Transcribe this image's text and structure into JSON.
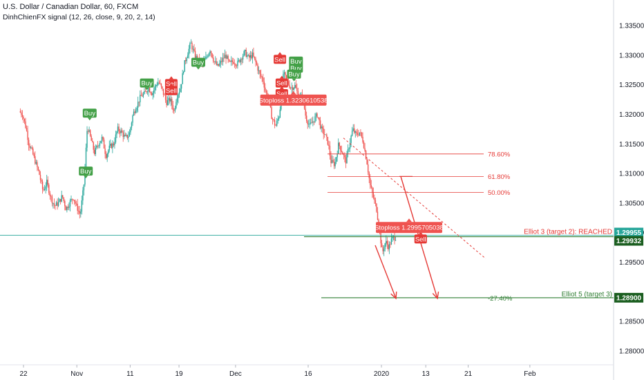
{
  "header": {
    "title": "U.S. Dollar / Canadian Dollar, 60, FXCM",
    "indicator": "DinhChienFX signal (12, 26, close, 9, 20, 2, 14)"
  },
  "chart_data": {
    "type": "candlestick",
    "symbol": "USDCAD",
    "timeframe": "60",
    "ylim": [
      1.2765,
      1.3395
    ],
    "price_ticks": [
      "1.33500",
      "1.33000",
      "1.32500",
      "1.32000",
      "1.31500",
      "1.31000",
      "1.30500",
      "1.30000",
      "1.29500",
      "1.28500",
      "1.28000"
    ],
    "date_ticks": [
      {
        "label": "22",
        "x": 0.0
      },
      {
        "label": "Nov",
        "x": 8.3
      },
      {
        "label": "11",
        "x": 16.6
      },
      {
        "label": "19",
        "x": 24.2
      },
      {
        "label": "Dec",
        "x": 33.0
      },
      {
        "label": "16",
        "x": 44.3
      },
      {
        "label": "2020",
        "x": 55.7
      },
      {
        "label": "13",
        "x": 62.6
      },
      {
        "label": "21",
        "x": 69.2
      },
      {
        "label": "Feb",
        "x": 78.8
      }
    ],
    "price_path": [
      [
        -0.5,
        1.3205
      ],
      [
        0,
        1.32
      ],
      [
        0.6,
        1.3175
      ],
      [
        1.0,
        1.315
      ],
      [
        1.4,
        1.314
      ],
      [
        2.0,
        1.312
      ],
      [
        2.6,
        1.31
      ],
      [
        3.2,
        1.307
      ],
      [
        3.8,
        1.3085
      ],
      [
        4.4,
        1.306
      ],
      [
        5.0,
        1.3045
      ],
      [
        5.6,
        1.305
      ],
      [
        6.2,
        1.3062
      ],
      [
        6.8,
        1.304
      ],
      [
        7.3,
        1.305
      ],
      [
        7.9,
        1.306
      ],
      [
        8.4,
        1.3045
      ],
      [
        9.0,
        1.303
      ],
      [
        9.6,
        1.3085
      ],
      [
        10.1,
        1.318
      ],
      [
        10.6,
        1.316
      ],
      [
        11.2,
        1.3135
      ],
      [
        11.8,
        1.315
      ],
      [
        12.4,
        1.316
      ],
      [
        13.0,
        1.313
      ],
      [
        13.6,
        1.3145
      ],
      [
        14.2,
        1.315
      ],
      [
        14.8,
        1.3175
      ],
      [
        15.4,
        1.317
      ],
      [
        16.0,
        1.316
      ],
      [
        16.6,
        1.3165
      ],
      [
        17.2,
        1.32
      ],
      [
        17.8,
        1.3215
      ],
      [
        18.4,
        1.323
      ],
      [
        19.0,
        1.3235
      ],
      [
        19.6,
        1.3245
      ],
      [
        20.2,
        1.3235
      ],
      [
        20.8,
        1.325
      ],
      [
        21.2,
        1.3255
      ],
      [
        21.8,
        1.324
      ],
      [
        22.4,
        1.322
      ],
      [
        23.0,
        1.3225
      ],
      [
        23.6,
        1.3205
      ],
      [
        24.0,
        1.323
      ],
      [
        24.6,
        1.3245
      ],
      [
        25.2,
        1.3285
      ],
      [
        25.6,
        1.33
      ],
      [
        26.2,
        1.332
      ],
      [
        26.8,
        1.33
      ],
      [
        27.4,
        1.329
      ],
      [
        28.0,
        1.3285
      ],
      [
        28.6,
        1.3295
      ],
      [
        29.2,
        1.331
      ],
      [
        29.8,
        1.329
      ],
      [
        30.4,
        1.328
      ],
      [
        31.0,
        1.329
      ],
      [
        31.6,
        1.33
      ],
      [
        32.2,
        1.3285
      ],
      [
        32.8,
        1.329
      ],
      [
        33.4,
        1.3285
      ],
      [
        34.0,
        1.3295
      ],
      [
        34.6,
        1.3305
      ],
      [
        35.2,
        1.3295
      ],
      [
        35.8,
        1.33
      ],
      [
        36.4,
        1.3285
      ],
      [
        37.0,
        1.3265
      ],
      [
        37.4,
        1.326
      ],
      [
        37.8,
        1.324
      ],
      [
        38.4,
        1.322
      ],
      [
        38.8,
        1.3195
      ],
      [
        39.4,
        1.318
      ],
      [
        40.0,
        1.32
      ],
      [
        40.6,
        1.327
      ],
      [
        41.2,
        1.3255
      ],
      [
        41.8,
        1.3245
      ],
      [
        42.4,
        1.3248
      ],
      [
        43.0,
        1.323
      ],
      [
        43.6,
        1.323
      ],
      [
        44.1,
        1.3195
      ],
      [
        44.7,
        1.318
      ],
      [
        45.3,
        1.319
      ],
      [
        45.9,
        1.32
      ],
      [
        46.5,
        1.3175
      ],
      [
        47.1,
        1.3165
      ],
      [
        47.6,
        1.315
      ],
      [
        48.0,
        1.312
      ],
      [
        48.6,
        1.3115
      ],
      [
        49.2,
        1.315
      ],
      [
        49.8,
        1.3135
      ],
      [
        50.3,
        1.312
      ],
      [
        50.9,
        1.315
      ],
      [
        51.4,
        1.3175
      ],
      [
        51.9,
        1.3165
      ],
      [
        52.5,
        1.317
      ],
      [
        53.0,
        1.3155
      ],
      [
        53.6,
        1.312
      ],
      [
        54.1,
        1.308
      ],
      [
        54.6,
        1.306
      ],
      [
        55.1,
        1.304
      ],
      [
        55.6,
        1.3
      ],
      [
        56.0,
        1.2965
      ],
      [
        56.5,
        1.2985
      ],
      [
        57.0,
        1.2975
      ],
      [
        57.5,
        1.299
      ],
      [
        58.0,
        1.2992
      ]
    ],
    "fib_levels": [
      {
        "label": "78.60%",
        "value": 1.3133
      },
      {
        "label": "61.80%",
        "value": 1.3095
      },
      {
        "label": "50.00%",
        "value": 1.3068
      },
      {
        "label": "-27.40%",
        "value": 1.289
      }
    ],
    "horizontal_lines": [
      {
        "value": 1.29955,
        "color": "#26a69a",
        "style": "thin"
      },
      {
        "value": 1.29932,
        "color": "#2e7d32",
        "style": "solid"
      },
      {
        "value": 1.289,
        "color": "#2e7d32",
        "style": "solid"
      }
    ],
    "price_tags": [
      {
        "label": "1.29955",
        "value": 1.29955,
        "color": "#26a69a"
      },
      {
        "label": "1.29932",
        "value": 1.29932,
        "color": "#1b5e20"
      },
      {
        "label": "1.28900",
        "value": 1.289,
        "color": "#1b5e20"
      }
    ],
    "annotations": [
      {
        "text": "Elliot 3 (target 2): REACHED",
        "value": 1.29955,
        "color": "#e53935"
      },
      {
        "text": "Elliot 5 (target 3)",
        "value": 1.289,
        "color": "#2e7d32"
      }
    ],
    "signals": [
      {
        "type": "Buy",
        "x": 10.3,
        "y": 1.3202
      },
      {
        "type": "Buy",
        "x": 9.7,
        "y": 1.3104
      },
      {
        "type": "Buy",
        "x": 19.2,
        "y": 1.3253
      },
      {
        "type": "Sell",
        "x": 23.0,
        "y": 1.3252
      },
      {
        "type": "Sell",
        "x": 23.0,
        "y": 1.324
      },
      {
        "type": "Buy",
        "x": 27.2,
        "y": 1.3288
      },
      {
        "type": "Sell",
        "x": 39.9,
        "y": 1.3293
      },
      {
        "type": "Sell",
        "x": 40.2,
        "y": 1.3253
      },
      {
        "type": "Sell",
        "x": 40.2,
        "y": 1.3235
      },
      {
        "type": "Buy",
        "x": 42.4,
        "y": 1.329
      },
      {
        "type": "Buy",
        "x": 42.4,
        "y": 1.3278
      },
      {
        "type": "Buy",
        "x": 42.1,
        "y": 1.3268
      },
      {
        "type": "Sell",
        "x": 61.8,
        "y": 1.29893
      }
    ],
    "stoplosses": [
      {
        "text": "Stoploss 1.3230610538",
        "x": 42.0,
        "y": 1.3224
      },
      {
        "text": "Stoploss 1.2995705038",
        "x": 60.0,
        "y": 1.30088
      }
    ]
  }
}
